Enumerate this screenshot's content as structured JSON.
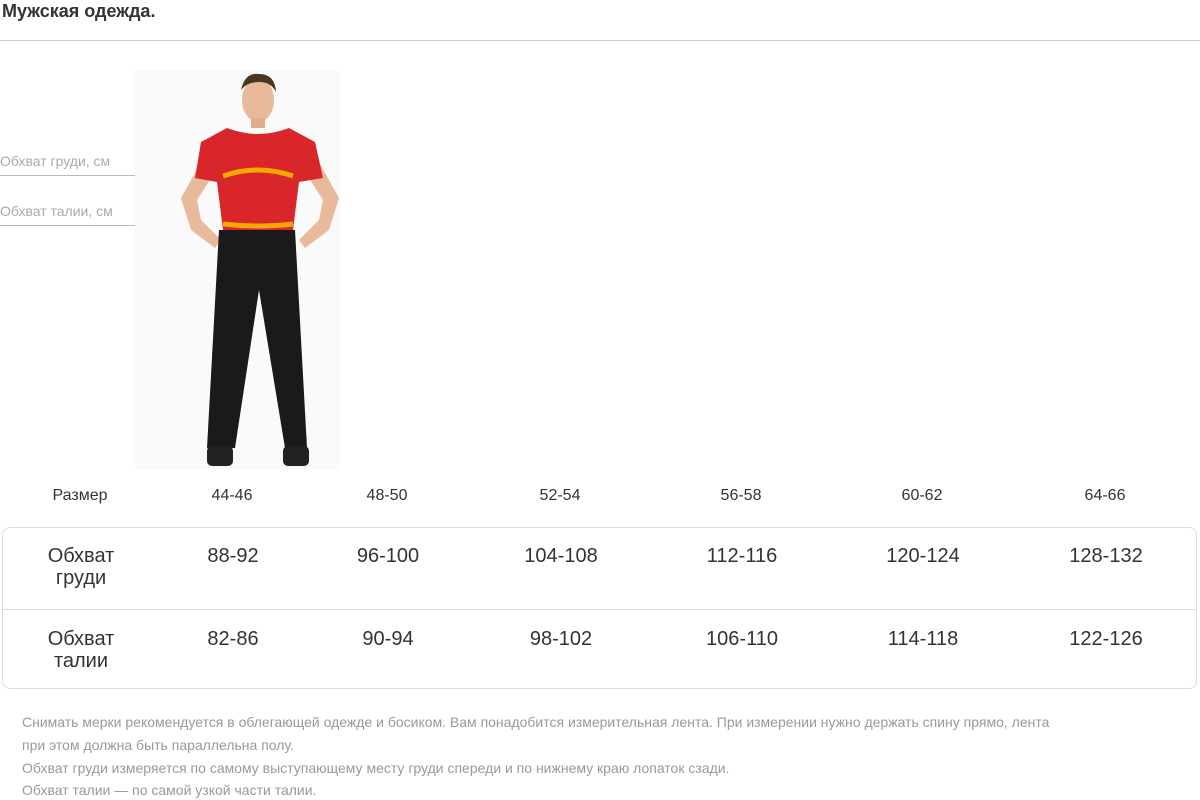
{
  "title": "Мужская одежда.",
  "figure": {
    "chest_label": "Обхват груди, см",
    "waist_label": "Обхват талии, см",
    "tape_color": "#f5a800",
    "shirt_color": "#d9262b"
  },
  "table": {
    "header_label": "Размер",
    "sizes": [
      "44-46",
      "48-50",
      "52-54",
      "56-58",
      "60-62",
      "64-66"
    ],
    "rows": [
      {
        "label_line1": "Обхват",
        "label_line2": "груди",
        "values": [
          "88-92",
          "96-100",
          "104-108",
          "112-116",
          "120-124",
          "128-132"
        ]
      },
      {
        "label_line1": "Обхват",
        "label_line2": "талии",
        "values": [
          "82-86",
          "90-94",
          "98-102",
          "106-110",
          "114-118",
          "122-126"
        ]
      }
    ]
  },
  "notes": [
    "Снимать мерки рекомендуется в облегающей одежде и босиком. Вам понадобится измерительная лента. При измерении нужно держать спину прямо, лента",
    "при этом должна быть параллельна полу.",
    "Обхват груди измеряется по самому выступающему месту груди спереди и по нижнему краю лопаток сзади.",
    "Обхват талии — по самой узкой части талии."
  ]
}
